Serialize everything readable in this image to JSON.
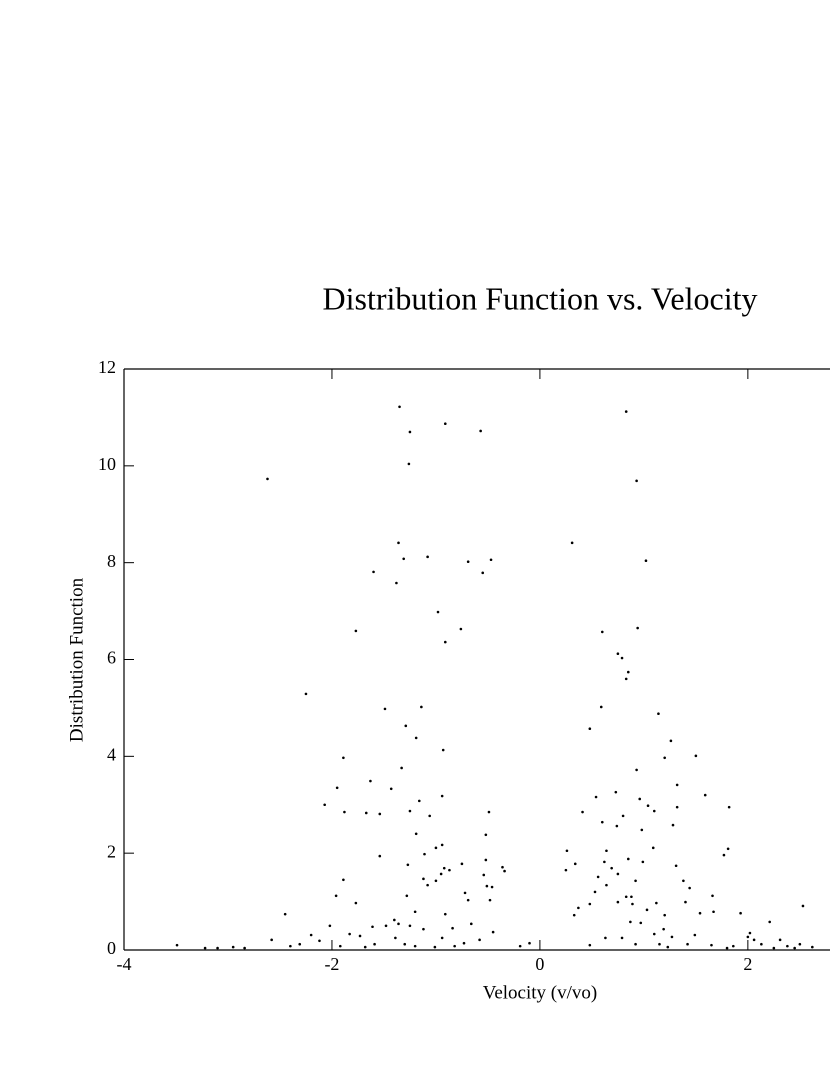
{
  "chart_data": {
    "type": "scatter",
    "title": "Distribution Function vs. Velocity",
    "x_label": "Velocity (v/vo)",
    "y_label": "Distribution Function",
    "color": "#000000",
    "xlim": [
      -4,
      2.79
    ],
    "xticks": [
      -4,
      -2,
      0,
      2
    ],
    "ylim": [
      0,
      12
    ],
    "yticks": [
      0,
      2,
      4,
      6,
      8,
      10,
      12
    ],
    "x": [
      -1.35,
      -0.91,
      -1.25,
      -0.57,
      -1.26,
      -2.62,
      -1.36,
      -1.31,
      -1.08,
      -0.69,
      -0.47,
      -0.55,
      -1.6,
      -1.38,
      -0.98,
      -0.91,
      -0.76,
      -1.77,
      -2.25,
      -1.49,
      -1.14,
      -1.29,
      -1.19,
      -0.93,
      -1.89,
      -1.33,
      -1.63,
      -1.95,
      -1.43,
      -0.94,
      -1.16,
      -2.07,
      -1.88,
      -1.67,
      -1.54,
      -1.25,
      -0.49,
      -1.06,
      -0.52,
      -1.19,
      -1.0,
      -0.94,
      -1.11,
      -1.54,
      -1.27,
      -0.52,
      -0.92,
      -0.87,
      -0.95,
      -0.36,
      -0.34,
      -0.75,
      -1.89,
      -1.12,
      -1.08,
      -1.0,
      -0.54,
      -0.51,
      -0.46,
      -1.96,
      -0.72,
      -0.69,
      -0.48,
      -1.28,
      -2.45,
      -1.2,
      -0.91,
      -1.4,
      -1.77,
      -2.02,
      -1.61,
      -1.48,
      -1.36,
      -1.25,
      -1.12,
      -0.84,
      -0.66,
      -0.45,
      -1.83,
      -1.73,
      -1.39,
      -2.2,
      -0.94,
      -0.58,
      -2.12,
      -2.58,
      -1.59,
      -1.3,
      -0.73,
      -0.1,
      -3.49,
      -3.1,
      -2.95,
      -2.4,
      -2.31,
      -1.92,
      -1.68,
      -1.2,
      -1.01,
      -0.82,
      -0.19,
      -2.84,
      -3.22,
      0.83,
      0.93,
      0.31,
      1.02,
      0.6,
      0.94,
      0.75,
      0.79,
      0.85,
      0.83,
      0.59,
      1.14,
      0.48,
      1.26,
      1.5,
      1.2,
      0.93,
      1.32,
      0.54,
      1.59,
      0.73,
      0.96,
      1.04,
      1.1,
      1.32,
      1.82,
      0.41,
      1.28,
      0.6,
      0.74,
      0.8,
      0.98,
      1.81,
      1.77,
      0.26,
      0.64,
      1.09,
      0.85,
      0.99,
      1.31,
      0.62,
      0.34,
      0.69,
      0.25,
      0.75,
      0.56,
      1.38,
      0.92,
      1.44,
      0.64,
      0.53,
      0.83,
      0.88,
      1.66,
      1.4,
      1.12,
      0.75,
      0.89,
      0.37,
      0.48,
      1.03,
      1.67,
      1.93,
      2.53,
      0.33,
      1.54,
      1.2,
      0.87,
      0.97,
      2.21,
      1.19,
      2.02,
      2.0,
      1.27,
      1.1,
      1.49,
      0.79,
      0.63,
      2.06,
      2.31,
      0.92,
      1.15,
      1.42,
      1.65,
      2.13,
      2.38,
      2.5,
      2.62,
      1.86,
      0.48,
      1.23,
      1.8,
      2.25,
      2.45
    ],
    "values": [
      11.22,
      10.87,
      10.7,
      10.72,
      10.04,
      9.73,
      8.41,
      8.08,
      8.12,
      8.02,
      8.06,
      7.79,
      7.81,
      7.58,
      6.98,
      6.36,
      6.63,
      6.59,
      5.29,
      4.98,
      5.02,
      4.63,
      4.38,
      4.13,
      3.97,
      3.76,
      3.49,
      3.35,
      3.33,
      3.18,
      3.08,
      3.0,
      2.85,
      2.83,
      2.81,
      2.87,
      2.85,
      2.77,
      2.38,
      2.4,
      2.11,
      2.17,
      1.98,
      1.94,
      1.76,
      1.86,
      1.69,
      1.65,
      1.57,
      1.71,
      1.63,
      1.78,
      1.45,
      1.47,
      1.34,
      1.43,
      1.55,
      1.32,
      1.3,
      1.12,
      1.18,
      1.03,
      1.03,
      1.12,
      0.74,
      0.79,
      0.74,
      0.62,
      0.97,
      0.5,
      0.48,
      0.5,
      0.54,
      0.5,
      0.43,
      0.45,
      0.54,
      0.37,
      0.33,
      0.29,
      0.25,
      0.31,
      0.25,
      0.21,
      0.19,
      0.21,
      0.12,
      0.12,
      0.14,
      0.14,
      0.1,
      0.04,
      0.06,
      0.08,
      0.12,
      0.08,
      0.06,
      0.08,
      0.06,
      0.08,
      0.08,
      0.04,
      0.04,
      11.12,
      9.69,
      8.41,
      8.04,
      6.57,
      6.65,
      6.12,
      6.03,
      5.74,
      5.6,
      5.02,
      4.88,
      4.57,
      4.32,
      4.01,
      3.97,
      3.72,
      3.41,
      3.16,
      3.2,
      3.26,
      3.12,
      2.98,
      2.87,
      2.95,
      2.95,
      2.85,
      2.58,
      2.64,
      2.56,
      2.77,
      2.48,
      2.09,
      1.96,
      2.05,
      2.05,
      2.11,
      1.88,
      1.82,
      1.74,
      1.82,
      1.78,
      1.69,
      1.65,
      1.57,
      1.51,
      1.43,
      1.43,
      1.28,
      1.34,
      1.2,
      1.1,
      1.1,
      1.12,
      0.99,
      0.97,
      0.99,
      0.95,
      0.87,
      0.95,
      0.83,
      0.79,
      0.76,
      0.91,
      0.72,
      0.76,
      0.72,
      0.58,
      0.56,
      0.58,
      0.43,
      0.35,
      0.27,
      0.27,
      0.33,
      0.31,
      0.25,
      0.25,
      0.21,
      0.21,
      0.12,
      0.12,
      0.12,
      0.1,
      0.12,
      0.08,
      0.12,
      0.06,
      0.08,
      0.1,
      0.06,
      0.04,
      0.04,
      0.04
    ]
  }
}
